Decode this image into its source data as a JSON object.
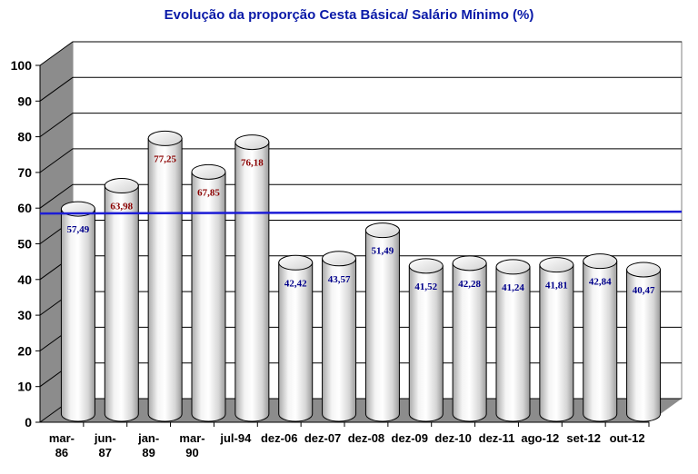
{
  "chart_data": {
    "type": "bar",
    "title": "Evolução da proporção Cesta Básica/ Salário Mínimo (%)",
    "categories": [
      "mar-86",
      "jun-87",
      "jan-89",
      "mar-90",
      "jul-94",
      "dez-06",
      "dez-07",
      "dez-08",
      "dez-09",
      "dez-10",
      "dez-11",
      "ago-12",
      "set-12",
      "out-12"
    ],
    "category_labels": [
      [
        "mar-",
        "86"
      ],
      [
        "jun-",
        "87"
      ],
      [
        "jan-",
        "89"
      ],
      [
        "mar-",
        "90"
      ],
      [
        "jul-94"
      ],
      [
        "dez-06"
      ],
      [
        "dez-07"
      ],
      [
        "dez-08"
      ],
      [
        "dez-09"
      ],
      [
        "dez-10"
      ],
      [
        "dez-11"
      ],
      [
        "ago-12"
      ],
      [
        "set-12"
      ],
      [
        "out-12"
      ]
    ],
    "values": [
      57.49,
      63.98,
      77.25,
      67.85,
      76.18,
      42.42,
      43.57,
      51.49,
      41.52,
      42.28,
      41.24,
      41.81,
      42.84,
      40.47
    ],
    "value_labels": [
      "57,49",
      "63,98",
      "77,25",
      "67,85",
      "76,18",
      "42,42",
      "43,57",
      "51,49",
      "41,52",
      "42,28",
      "41,24",
      "41,81",
      "42,84",
      "40,47"
    ],
    "label_colors": [
      "#00008b",
      "#8b0000",
      "#8b0000",
      "#8b0000",
      "#8b0000",
      "#00008b",
      "#00008b",
      "#00008b",
      "#00008b",
      "#00008b",
      "#00008b",
      "#00008b",
      "#00008b",
      "#00008b"
    ],
    "ylim": [
      0,
      100
    ],
    "yticks": [
      0,
      10,
      20,
      30,
      40,
      50,
      60,
      70,
      80,
      90,
      100
    ],
    "reference_line": 58.5,
    "reference_line_color": "#1c1cd6",
    "grid": true,
    "bar_style": "3d-cylinder",
    "xlabel": "",
    "ylabel": ""
  }
}
